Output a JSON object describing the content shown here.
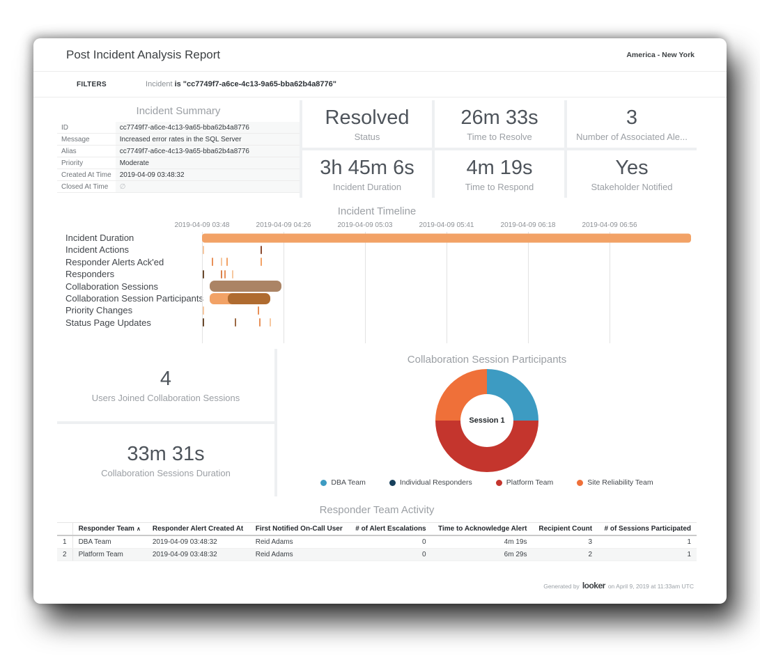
{
  "header": {
    "title": "Post Incident Analysis Report",
    "timezone": "America - New York"
  },
  "filters": {
    "label": "FILTERS",
    "field": "Incident",
    "condition": "is \"cc7749f7-a6ce-4c13-9a65-bba62b4a8776\""
  },
  "icons": {
    "sort_asc": "∧"
  },
  "incident_summary": {
    "title": "Incident Summary",
    "rows": [
      {
        "label": "ID",
        "value": "cc7749f7-a6ce-4c13-9a65-bba62b4a8776"
      },
      {
        "label": "Message",
        "value": "Increased error rates in the SQL Server"
      },
      {
        "label": "Alias",
        "value": "cc7749f7-a6ce-4c13-9a65-bba62b4a8776"
      },
      {
        "label": "Priority",
        "value": "Moderate"
      },
      {
        "label": "Created At Time",
        "value": "2019-04-09 03:48:32"
      },
      {
        "label": "Closed At Time",
        "value": "∅",
        "is_null": true
      }
    ]
  },
  "kpis": [
    {
      "value": "Resolved",
      "label": "Status"
    },
    {
      "value": "26m 33s",
      "label": "Time to Resolve"
    },
    {
      "value": "3",
      "label": "Number of Associated Ale..."
    },
    {
      "value": "3h 45m 6s",
      "label": "Incident Duration"
    },
    {
      "value": "4m 19s",
      "label": "Time to Respond"
    },
    {
      "value": "Yes",
      "label": "Stakeholder Notified"
    }
  ],
  "collab_kpis": [
    {
      "value": "4",
      "label": "Users Joined Collaboration Sessions"
    },
    {
      "value": "33m 31s",
      "label": "Collaboration Sessions Duration"
    }
  ],
  "timeline": {
    "title": "Incident Timeline",
    "axis_labels": [
      "2019-04-09 03:48",
      "2019-04-09 04:26",
      "2019-04-09 05:03",
      "2019-04-09 05:41",
      "2019-04-09 06:18",
      "2019-04-09 06:56"
    ],
    "axis_positions": [
      0,
      16.67,
      33.33,
      50,
      66.67,
      83.34
    ],
    "rows": [
      {
        "label": "Incident Duration",
        "items": [
          {
            "kind": "bar",
            "start": 0,
            "end": 100,
            "color": "#F2A266",
            "h": 13,
            "r": 4
          }
        ]
      },
      {
        "label": "Incident Actions",
        "items": [
          {
            "kind": "tick",
            "at": 0.2,
            "color": "#F6C79F"
          },
          {
            "kind": "tick",
            "at": 11.9,
            "color": "#8A4A30"
          }
        ]
      },
      {
        "label": "Responder Alerts Ack'ed",
        "items": [
          {
            "kind": "tick",
            "at": 2.0,
            "color": "#E89058"
          },
          {
            "kind": "tick",
            "at": 3.8,
            "color": "#F6C79F"
          },
          {
            "kind": "tick",
            "at": 5.0,
            "color": "#F2A266"
          },
          {
            "kind": "tick",
            "at": 11.9,
            "color": "#F2A266"
          }
        ]
      },
      {
        "label": "Responders",
        "items": [
          {
            "kind": "tick",
            "at": 0.1,
            "color": "#6B4A2E"
          },
          {
            "kind": "tick",
            "at": 3.9,
            "color": "#D9824E"
          },
          {
            "kind": "tick",
            "at": 4.6,
            "color": "#E89058"
          },
          {
            "kind": "tick",
            "at": 6.1,
            "color": "#F6C79F"
          }
        ]
      },
      {
        "label": "Collaboration Sessions",
        "items": [
          {
            "kind": "bar",
            "start": 1.6,
            "end": 16.2,
            "color": "#AB8465",
            "h": 16,
            "r": 7
          }
        ]
      },
      {
        "label": "Collaboration Session Participants",
        "items": [
          {
            "kind": "bar",
            "start": 1.6,
            "end": 7.1,
            "color": "#F2A266",
            "h": 16,
            "r": 6
          },
          {
            "kind": "bar",
            "start": 5.3,
            "end": 13.9,
            "color": "#AF6B30",
            "h": 16,
            "r": 7
          }
        ]
      },
      {
        "label": "Priority Changes",
        "items": [
          {
            "kind": "tick",
            "at": 0.2,
            "color": "#F6C79F"
          },
          {
            "kind": "tick",
            "at": 11.4,
            "color": "#E89058"
          }
        ]
      },
      {
        "label": "Status Page Updates",
        "items": [
          {
            "kind": "tick",
            "at": 0.1,
            "color": "#6B4A2E"
          },
          {
            "kind": "tick",
            "at": 6.7,
            "color": "#9C6A44"
          },
          {
            "kind": "tick",
            "at": 11.7,
            "color": "#E89058"
          },
          {
            "kind": "tick",
            "at": 13.8,
            "color": "#F6C79F"
          }
        ]
      }
    ]
  },
  "donut": {
    "title": "Collaboration Session Participants",
    "center_label": "Session 1",
    "slices": [
      {
        "name": "DBA Team",
        "pct": 25,
        "color": "#3D9BC2"
      },
      {
        "name": "Platform Team",
        "pct": 50,
        "color": "#C4352D"
      },
      {
        "name": "Site Reliability Team",
        "pct": 25,
        "color": "#EF7039"
      }
    ],
    "legend": [
      {
        "name": "DBA Team",
        "color": "#3D9BC2"
      },
      {
        "name": "Individual Responders",
        "color": "#17405C"
      },
      {
        "name": "Platform Team",
        "color": "#C4352D"
      },
      {
        "name": "Site Reliability Team",
        "color": "#EF7039"
      }
    ]
  },
  "activity_table": {
    "title": "Responder Team Activity",
    "columns": [
      {
        "label": "Responder Team",
        "align": "left",
        "sorted": "asc"
      },
      {
        "label": "Responder Alert Created At",
        "align": "left"
      },
      {
        "label": "First Notified On-Call User",
        "align": "left"
      },
      {
        "label": "# of Alert Escalations",
        "align": "right"
      },
      {
        "label": "Time to Acknowledge Alert",
        "align": "right"
      },
      {
        "label": "Recipient Count",
        "align": "right"
      },
      {
        "label": "# of Sessions Participated",
        "align": "right"
      }
    ],
    "rows": [
      {
        "num": "1",
        "cells": [
          "DBA Team",
          "2019-04-09 03:48:32",
          "Reid Adams",
          "0",
          "4m 19s",
          "3",
          "1"
        ]
      },
      {
        "num": "2",
        "cells": [
          "Platform Team",
          "2019-04-09 03:48:32",
          "Reid Adams",
          "0",
          "6m 29s",
          "2",
          "1"
        ]
      }
    ]
  },
  "footer": {
    "prefix": "Generated by",
    "brand": "looker",
    "suffix": "on April 9, 2019 at 11:33am UTC"
  },
  "chart_data": [
    {
      "type": "gantt",
      "title": "Incident Timeline",
      "x_tick_labels": [
        "2019-04-09 03:48",
        "2019-04-09 04:26",
        "2019-04-09 05:03",
        "2019-04-09 05:41",
        "2019-04-09 06:18",
        "2019-04-09 06:56"
      ],
      "rows": [
        {
          "label": "Incident Duration",
          "bars_pct": [
            [
              0,
              100
            ]
          ]
        },
        {
          "label": "Incident Actions",
          "events_pct": [
            0.2,
            11.9
          ]
        },
        {
          "label": "Responder Alerts Ack'ed",
          "events_pct": [
            2.0,
            3.8,
            5.0,
            11.9
          ]
        },
        {
          "label": "Responders",
          "events_pct": [
            0.1,
            3.9,
            4.6,
            6.1
          ]
        },
        {
          "label": "Collaboration Sessions",
          "bars_pct": [
            [
              1.6,
              16.2
            ]
          ]
        },
        {
          "label": "Collaboration Session Participants",
          "bars_pct": [
            [
              1.6,
              7.1
            ],
            [
              5.3,
              13.9
            ]
          ]
        },
        {
          "label": "Priority Changes",
          "events_pct": [
            0.2,
            11.4
          ]
        },
        {
          "label": "Status Page Updates",
          "events_pct": [
            0.1,
            6.7,
            11.7,
            13.8
          ]
        }
      ]
    },
    {
      "type": "pie",
      "title": "Collaboration Session Participants",
      "center_label": "Session 1",
      "labels": [
        "DBA Team",
        "Platform Team",
        "Site Reliability Team"
      ],
      "values_pct": [
        25,
        50,
        25
      ],
      "legend": [
        "DBA Team",
        "Individual Responders",
        "Platform Team",
        "Site Reliability Team"
      ],
      "legend_position": "bottom"
    }
  ]
}
